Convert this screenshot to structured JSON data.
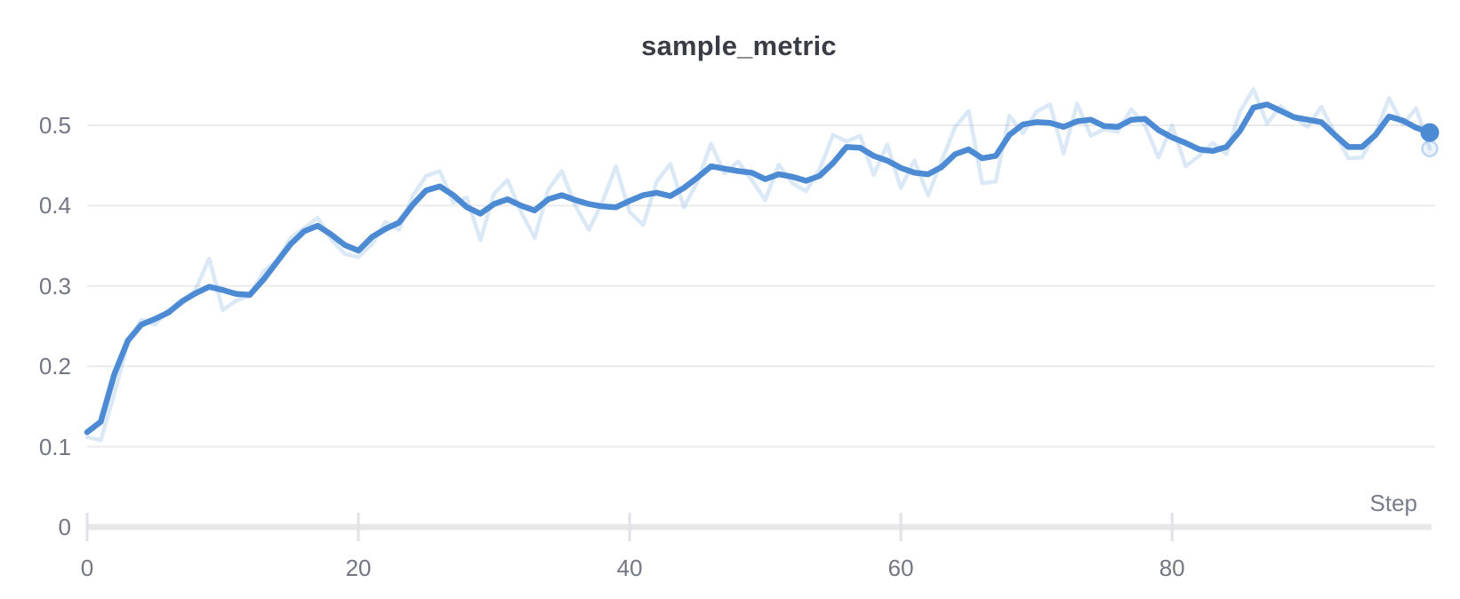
{
  "panel": {
    "background_color": "#ffffff"
  },
  "chart_data": {
    "type": "line",
    "title": "sample_metric",
    "xlabel": "Step",
    "ylabel": "",
    "xlim": [
      0,
      100
    ],
    "ylim": [
      0,
      0.55
    ],
    "grid": "horizontal",
    "legend_position": "none",
    "x_tick_labels": [
      "0",
      "20",
      "40",
      "60",
      "80"
    ],
    "x_tick_values": [
      0,
      20,
      40,
      60,
      80
    ],
    "y_tick_labels": [
      "0",
      "0.1",
      "0.2",
      "0.3",
      "0.4",
      "0.5"
    ],
    "y_tick_values": [
      0,
      0.1,
      0.2,
      0.3,
      0.4,
      0.5
    ],
    "x_definition": {
      "start": 0,
      "step": 1,
      "count": 100
    },
    "series": [
      {
        "name": "raw",
        "style": "faint",
        "values": [
          0.112,
          0.108,
          0.165,
          0.23,
          0.258,
          0.252,
          0.27,
          0.278,
          0.296,
          0.334,
          0.27,
          0.282,
          0.288,
          0.318,
          0.332,
          0.36,
          0.372,
          0.385,
          0.358,
          0.34,
          0.336,
          0.352,
          0.38,
          0.37,
          0.412,
          0.437,
          0.443,
          0.404,
          0.41,
          0.357,
          0.415,
          0.432,
          0.392,
          0.36,
          0.42,
          0.443,
          0.4,
          0.37,
          0.405,
          0.449,
          0.392,
          0.376,
          0.43,
          0.452,
          0.398,
          0.43,
          0.477,
          0.44,
          0.455,
          0.432,
          0.407,
          0.451,
          0.428,
          0.418,
          0.445,
          0.488,
          0.48,
          0.487,
          0.438,
          0.476,
          0.422,
          0.456,
          0.413,
          0.455,
          0.498,
          0.518,
          0.428,
          0.43,
          0.512,
          0.49,
          0.517,
          0.526,
          0.465,
          0.527,
          0.487,
          0.495,
          0.492,
          0.52,
          0.5,
          0.46,
          0.5,
          0.449,
          0.462,
          0.478,
          0.464,
          0.517,
          0.545,
          0.502,
          0.524,
          0.51,
          0.498,
          0.523,
          0.49,
          0.459,
          0.46,
          0.49,
          0.534,
          0.501,
          0.521,
          0.471
        ]
      },
      {
        "name": "smoothed",
        "style": "bold",
        "values": [
          0.118,
          0.131,
          0.19,
          0.232,
          0.252,
          0.259,
          0.267,
          0.281,
          0.291,
          0.299,
          0.295,
          0.29,
          0.289,
          0.308,
          0.33,
          0.352,
          0.368,
          0.375,
          0.364,
          0.351,
          0.344,
          0.361,
          0.371,
          0.379,
          0.401,
          0.419,
          0.424,
          0.413,
          0.398,
          0.39,
          0.402,
          0.408,
          0.4,
          0.394,
          0.408,
          0.413,
          0.407,
          0.402,
          0.399,
          0.398,
          0.406,
          0.413,
          0.416,
          0.412,
          0.422,
          0.435,
          0.449,
          0.446,
          0.443,
          0.441,
          0.433,
          0.439,
          0.436,
          0.431,
          0.437,
          0.453,
          0.473,
          0.472,
          0.462,
          0.456,
          0.447,
          0.441,
          0.439,
          0.448,
          0.464,
          0.47,
          0.459,
          0.462,
          0.488,
          0.501,
          0.504,
          0.503,
          0.498,
          0.505,
          0.507,
          0.499,
          0.498,
          0.507,
          0.508,
          0.494,
          0.485,
          0.478,
          0.47,
          0.468,
          0.473,
          0.493,
          0.522,
          0.526,
          0.518,
          0.51,
          0.507,
          0.504,
          0.488,
          0.473,
          0.473,
          0.488,
          0.511,
          0.506,
          0.497,
          0.491
        ]
      }
    ],
    "end_markers": {
      "smoothed_final_value": 0.491,
      "raw_final_value": 0.471
    },
    "colors": {
      "line_blue": "#4c8bd4",
      "raw_line_alpha": 0.2,
      "gridline": "#ebebeb",
      "axis_line": "#e8e8e8",
      "axis_tick": "#e2e2e6",
      "tick_text": "#747783",
      "axis_title_text": "#797d8a",
      "title_text": "#3a3d45"
    }
  }
}
